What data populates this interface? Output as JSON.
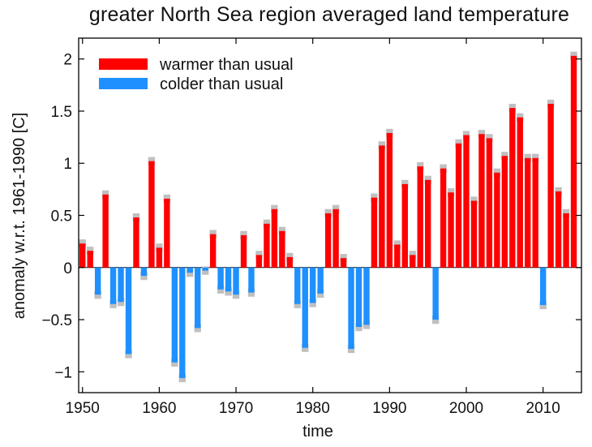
{
  "chart_data": {
    "type": "bar",
    "title": "greater North Sea region averaged land temperature",
    "xlabel": "time",
    "ylabel": "anomaly w.r.t. 1961-1990 [C]",
    "xlim": [
      1949.5,
      2015
    ],
    "ylim": [
      -1.2,
      2.2
    ],
    "xticks": [
      1950,
      1960,
      1970,
      1980,
      1990,
      2000,
      2010
    ],
    "xtick_labels": [
      "1950",
      "1960",
      "1970",
      "1980",
      "1990",
      "2000",
      "2010"
    ],
    "yticks": [
      -1,
      -0.5,
      0,
      0.5,
      1,
      1.5,
      2
    ],
    "ytick_labels": [
      "−1",
      "−0.5",
      "0",
      "0.5",
      "1",
      "1.5",
      "2"
    ],
    "grid": false,
    "legend_position": "top-left",
    "series": [
      {
        "name": "warmer than usual",
        "color": "#ff0000"
      },
      {
        "name": "colder than usual",
        "color": "#1e90ff"
      }
    ],
    "uncertainty_color": "#c0c0c0",
    "uncertainty_halfwidth": 0.04,
    "years": [
      1950,
      1951,
      1952,
      1953,
      1954,
      1955,
      1956,
      1957,
      1958,
      1959,
      1960,
      1961,
      1962,
      1963,
      1964,
      1965,
      1966,
      1967,
      1968,
      1969,
      1970,
      1971,
      1972,
      1973,
      1974,
      1975,
      1976,
      1977,
      1978,
      1979,
      1980,
      1981,
      1982,
      1983,
      1984,
      1985,
      1986,
      1987,
      1988,
      1989,
      1990,
      1991,
      1992,
      1993,
      1994,
      1995,
      1996,
      1997,
      1998,
      1999,
      2000,
      2001,
      2002,
      2003,
      2004,
      2005,
      2006,
      2007,
      2008,
      2009,
      2010,
      2011,
      2012,
      2013,
      2014
    ],
    "values": [
      0.23,
      0.16,
      -0.26,
      0.7,
      -0.35,
      -0.33,
      -0.83,
      0.48,
      -0.08,
      1.02,
      0.19,
      0.66,
      -0.91,
      -1.06,
      -0.05,
      -0.58,
      -0.03,
      0.32,
      -0.21,
      -0.23,
      -0.26,
      0.31,
      -0.24,
      0.12,
      0.42,
      0.56,
      0.35,
      0.1,
      -0.35,
      -0.77,
      -0.34,
      -0.25,
      0.52,
      0.56,
      0.09,
      -0.78,
      -0.57,
      -0.55,
      0.67,
      1.17,
      1.29,
      0.22,
      0.8,
      0.12,
      0.97,
      0.84,
      -0.5,
      0.95,
      0.72,
      1.19,
      1.27,
      0.64,
      1.28,
      1.24,
      0.91,
      1.07,
      1.53,
      1.44,
      1.05,
      1.05,
      -0.36,
      1.57,
      0.73,
      0.52,
      2.03
    ]
  }
}
